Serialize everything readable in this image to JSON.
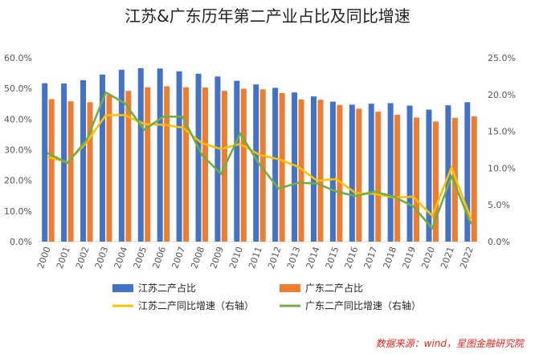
{
  "chart_data": {
    "type": "bar",
    "title": "江苏&广东历年第二产业占比及同比增速",
    "categories": [
      "2000",
      "2001",
      "2002",
      "2003",
      "2004",
      "2005",
      "2006",
      "2007",
      "2008",
      "2009",
      "2010",
      "2011",
      "2012",
      "2013",
      "2014",
      "2015",
      "2016",
      "2017",
      "2018",
      "2019",
      "2020",
      "2021",
      "2022"
    ],
    "series": [
      {
        "name": "江苏二产占比",
        "kind": "bar",
        "axis": "left",
        "color": "#4472C4",
        "values": [
          51.7,
          51.6,
          52.7,
          54.5,
          56.1,
          56.6,
          56.5,
          55.6,
          54.8,
          53.9,
          52.5,
          51.3,
          50.2,
          48.7,
          47.4,
          45.7,
          44.7,
          45.0,
          45.2,
          44.4,
          43.1,
          44.5,
          45.5
        ]
      },
      {
        "name": "广东二产占比",
        "kind": "bar",
        "axis": "left",
        "color": "#ED7D31",
        "values": [
          46.5,
          45.8,
          45.5,
          47.9,
          49.2,
          50.4,
          50.7,
          50.4,
          50.3,
          49.2,
          49.9,
          49.7,
          48.5,
          46.4,
          46.3,
          44.6,
          43.4,
          42.4,
          41.4,
          40.5,
          39.2,
          40.4,
          40.9
        ]
      },
      {
        "name": "江苏二产同比增速（右轴）",
        "kind": "line",
        "axis": "right",
        "color": "#FFC000",
        "values": [
          11.5,
          10.8,
          13.5,
          17.2,
          17.2,
          16.0,
          15.9,
          15.5,
          13.4,
          12.6,
          13.3,
          11.8,
          11.2,
          10.2,
          8.3,
          8.5,
          6.6,
          6.5,
          6.0,
          6.1,
          3.5,
          10.1,
          3.2
        ]
      },
      {
        "name": "广东二产同比增速（右轴）",
        "kind": "line",
        "axis": "right",
        "color": "#70AD47",
        "values": [
          12.0,
          10.7,
          13.8,
          20.3,
          18.8,
          15.2,
          17.0,
          17.0,
          11.8,
          9.2,
          14.7,
          10.5,
          7.2,
          8.0,
          7.9,
          6.8,
          6.2,
          6.8,
          6.1,
          4.8,
          1.8,
          8.9,
          2.5
        ]
      }
    ],
    "ylim_left": [
      0,
      60
    ],
    "ylim_right": [
      0,
      25
    ],
    "yticks_left": [
      "0.0%",
      "10.0%",
      "20.0%",
      "30.0%",
      "40.0%",
      "50.0%",
      "60.0%"
    ],
    "yticks_right": [
      "0.0%",
      "5.0%",
      "10.0%",
      "15.0%",
      "20.0%",
      "25.0%"
    ],
    "grid": false,
    "legend_position": "bottom"
  },
  "source_note": "数据来源：wind，星图金融研究院"
}
